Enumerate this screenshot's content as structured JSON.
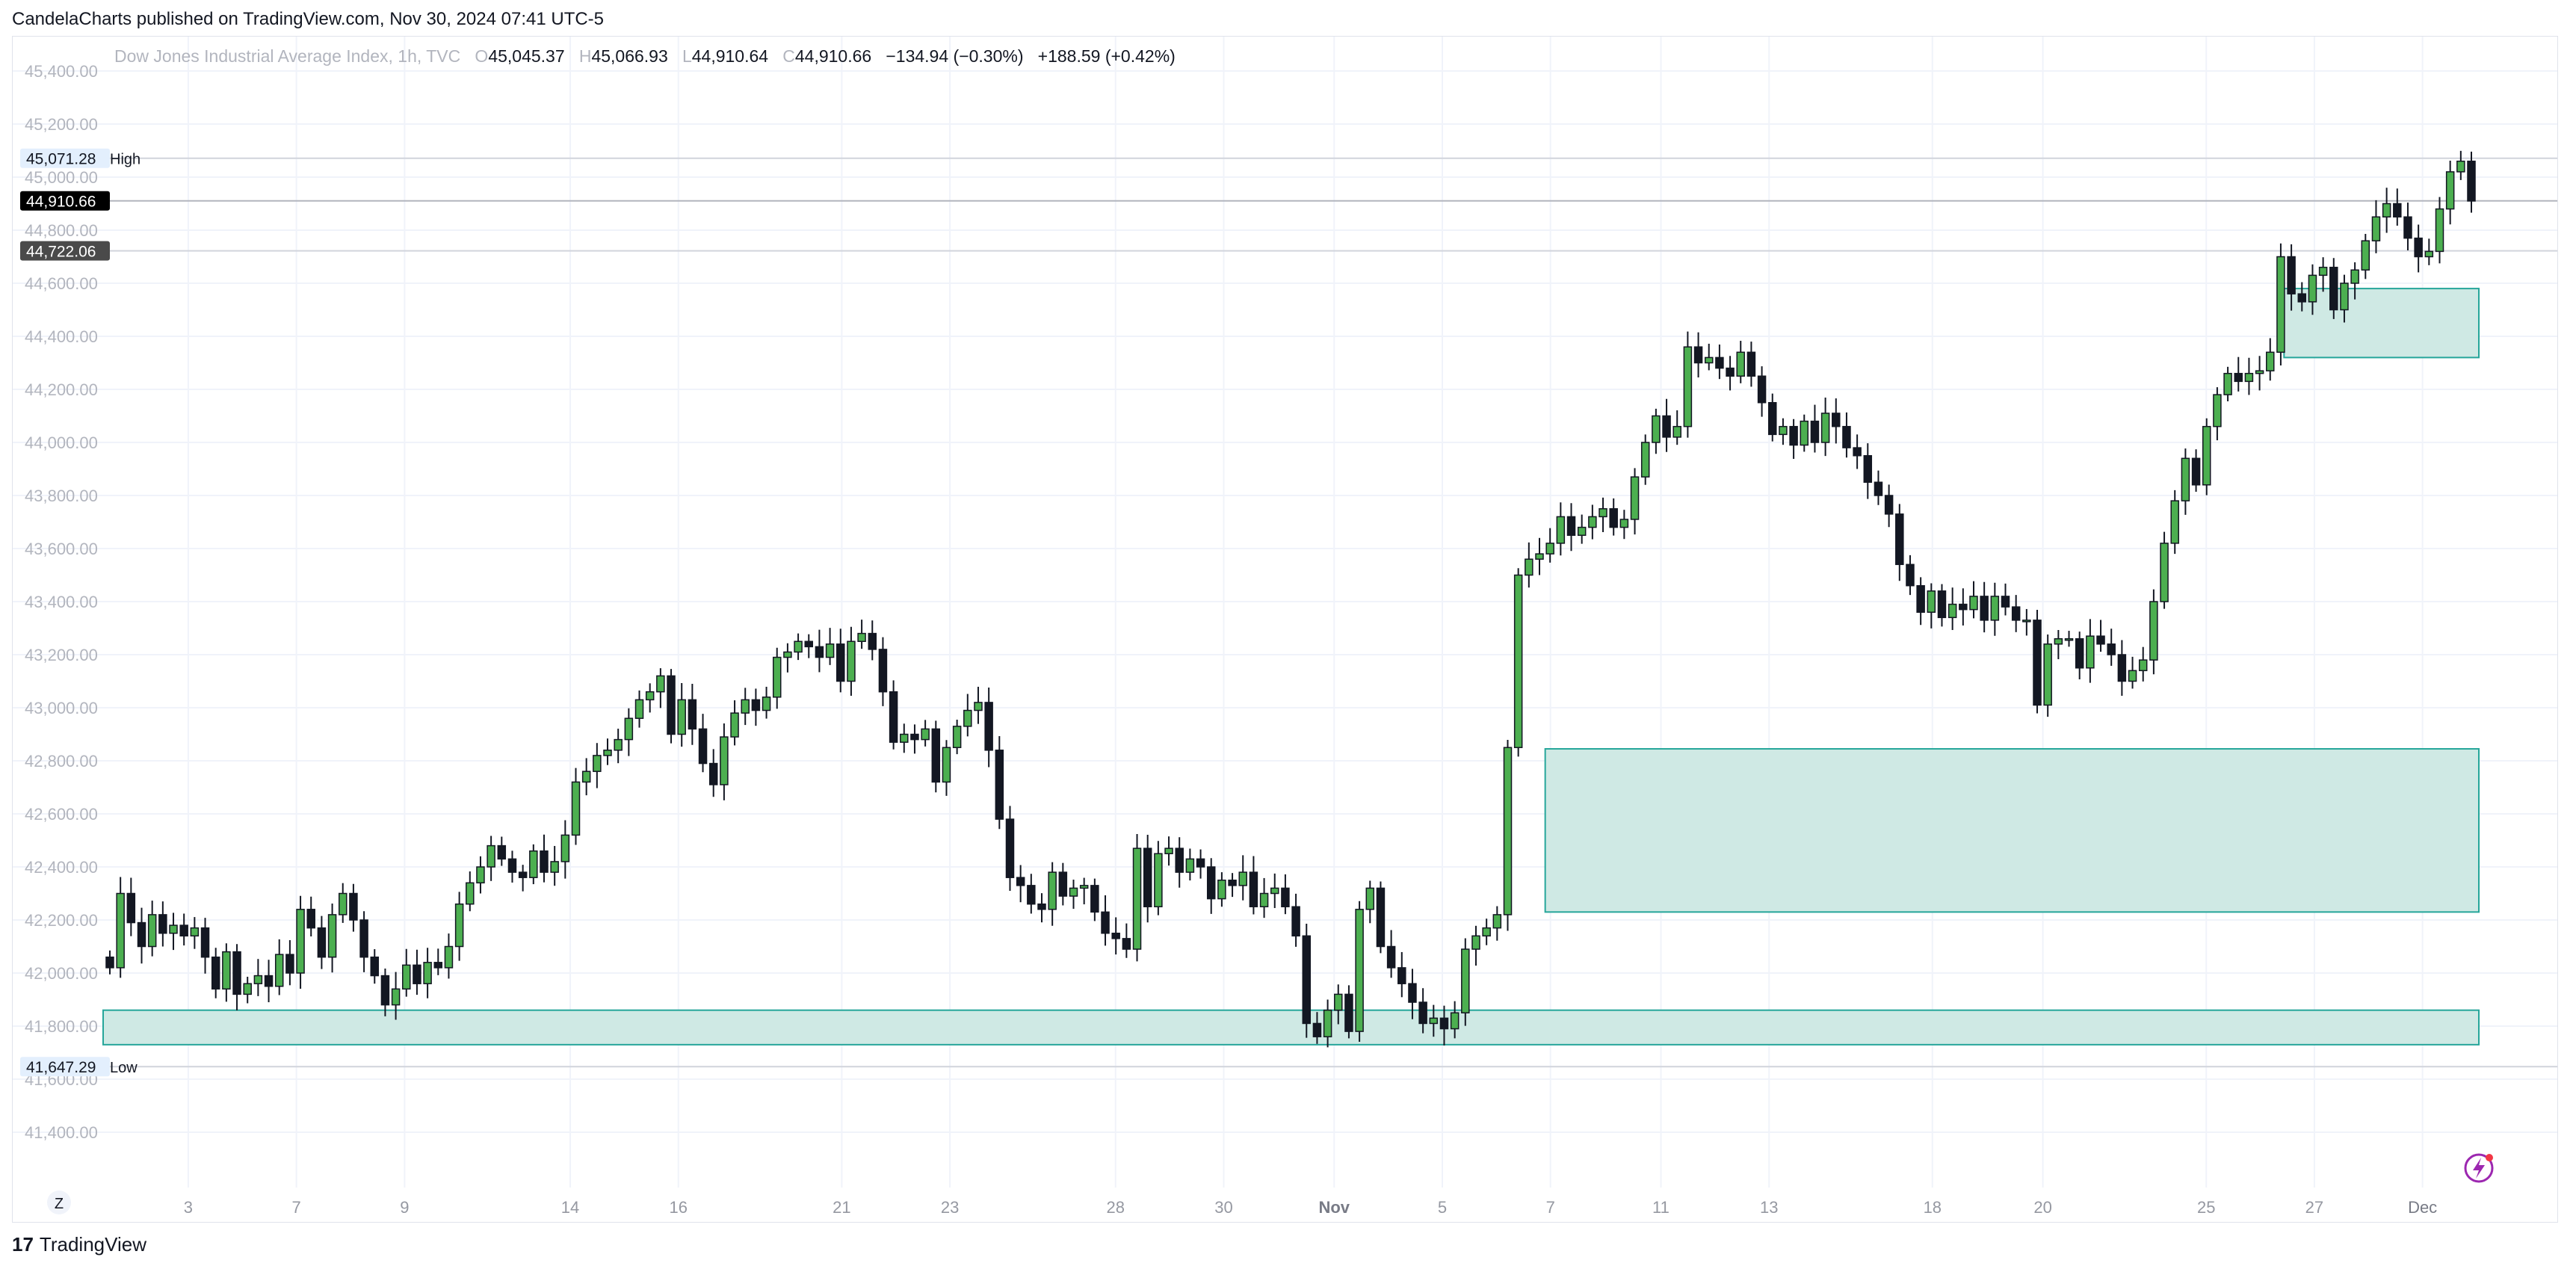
{
  "publisher_line": "CandelaCharts published on TradingView.com, Nov 30, 2024 07:41 UTC-5",
  "legend": {
    "symbol": "Dow Jones Industrial Average Index, 1h, TVC",
    "open_key": "O",
    "open": "45,045.37",
    "high_key": "H",
    "high": "45,066.93",
    "low_key": "L",
    "low": "44,910.64",
    "close_key": "C",
    "close": "44,910.66",
    "change": "−134.94 (−0.30%)",
    "change2": "+188.59 (+0.42%)"
  },
  "footer": {
    "brand": "TradingView",
    "logo": "17"
  },
  "colors": {
    "up": "#4caf50",
    "down": "#131722",
    "zone_fill": "#cfe9e4",
    "zone_stroke": "#26a69a",
    "grid": "#f0f3fa"
  },
  "chart_data": {
    "type": "candlestick",
    "title": "Dow Jones Industrial Average Index, 1h, TVC",
    "ylim": [
      41400,
      45500
    ],
    "y_ticks": [
      41400,
      41600,
      41800,
      42000,
      42200,
      42400,
      42600,
      42800,
      43000,
      43200,
      43400,
      43600,
      43800,
      44000,
      44200,
      44400,
      44600,
      44800,
      45000,
      45200,
      45400
    ],
    "x_ticks": [
      {
        "label": "3",
        "pos": 0.037
      },
      {
        "label": "7",
        "pos": 0.084
      },
      {
        "label": "9",
        "pos": 0.131
      },
      {
        "label": "14",
        "pos": 0.203
      },
      {
        "label": "16",
        "pos": 0.25
      },
      {
        "label": "21",
        "pos": 0.321
      },
      {
        "label": "23",
        "pos": 0.368
      },
      {
        "label": "28",
        "pos": 0.44
      },
      {
        "label": "30",
        "pos": 0.487
      },
      {
        "label": "Nov",
        "pos": 0.535
      },
      {
        "label": "5",
        "pos": 0.582
      },
      {
        "label": "7",
        "pos": 0.629
      },
      {
        "label": "11",
        "pos": 0.677
      },
      {
        "label": "13",
        "pos": 0.724
      },
      {
        "label": "18",
        "pos": 0.795
      },
      {
        "label": "20",
        "pos": 0.843
      },
      {
        "label": "25",
        "pos": 0.914
      },
      {
        "label": "27",
        "pos": 0.961
      },
      {
        "label": "Dec",
        "pos": 1.008
      }
    ],
    "price_labels": {
      "high_value": "45,071.28",
      "high_text": "High",
      "last_value": "44,910.66",
      "level_value": "44,722.06",
      "low_value": "41,647.29",
      "low_text": "Low"
    },
    "levels": {
      "high": 45071.28,
      "last": 44910.66,
      "mid": 44722.06,
      "low": 41647.29
    },
    "zones": [
      {
        "x0": 0.0,
        "x1": 1.0,
        "top": 41860,
        "bottom": 41730
      },
      {
        "x0": 0.607,
        "x1": 1.0,
        "top": 42845,
        "bottom": 42230
      },
      {
        "x0": 0.918,
        "x1": 1.0,
        "top": 44580,
        "bottom": 44320
      }
    ],
    "bottom_left_label": "Z",
    "closes": [
      42020,
      42300,
      42190,
      42100,
      42220,
      42150,
      42180,
      42140,
      42170,
      42060,
      41940,
      42080,
      41920,
      41960,
      41990,
      41950,
      42070,
      42000,
      42240,
      42170,
      42060,
      42220,
      42300,
      42200,
      42060,
      41990,
      41880,
      41940,
      42030,
      41960,
      42040,
      42020,
      42100,
      42260,
      42340,
      42400,
      42480,
      42430,
      42380,
      42360,
      42460,
      42380,
      42420,
      42520,
      42720,
      42760,
      42820,
      42840,
      42880,
      42960,
      43030,
      43060,
      43120,
      42900,
      43030,
      42920,
      42790,
      42710,
      42890,
      42980,
      43030,
      42990,
      43040,
      43190,
      43210,
      43250,
      43230,
      43190,
      43240,
      43100,
      43250,
      43280,
      43220,
      43060,
      42870,
      42900,
      42880,
      42920,
      42720,
      42850,
      42930,
      42990,
      43020,
      42840,
      42580,
      42360,
      42330,
      42260,
      42240,
      42380,
      42290,
      42320,
      42330,
      42230,
      42150,
      42130,
      42090,
      42470,
      42250,
      42450,
      42470,
      42380,
      42430,
      42400,
      42280,
      42350,
      42330,
      42380,
      42250,
      42300,
      42320,
      42250,
      42140,
      41810,
      41760,
      41860,
      41920,
      41780,
      42240,
      42320,
      42100,
      42020,
      41960,
      41890,
      41810,
      41830,
      41790,
      41850,
      42090,
      42140,
      42170,
      42220,
      42850,
      43500,
      43560,
      43580,
      43620,
      43720,
      43650,
      43680,
      43720,
      43750,
      43680,
      43710,
      43870,
      44000,
      44100,
      44020,
      44060,
      44360,
      44300,
      44320,
      44280,
      44250,
      44340,
      44250,
      44150,
      44030,
      44060,
      43990,
      44080,
      44000,
      44110,
      44060,
      43980,
      43950,
      43850,
      43800,
      43730,
      43540,
      43460,
      43360,
      43440,
      43340,
      43390,
      43370,
      43420,
      43330,
      43420,
      43380,
      43330,
      43330,
      43010,
      43240,
      43260,
      43260,
      43150,
      43270,
      43240,
      43200,
      43100,
      43140,
      43180,
      43400,
      43620,
      43780,
      43940,
      43840,
      44060,
      44180,
      44260,
      44230,
      44260,
      44270,
      44340,
      44700,
      44560,
      44530,
      44630,
      44660,
      44500,
      44600,
      44650,
      44760,
      44850,
      44900,
      44850,
      44770,
      44700,
      44720,
      44880,
      45020,
      45060,
      44910
    ]
  }
}
